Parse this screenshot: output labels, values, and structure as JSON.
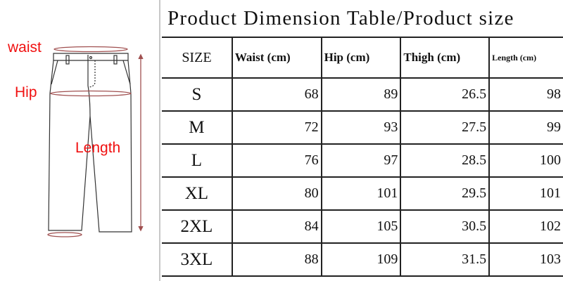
{
  "diagram": {
    "labels": {
      "waist": "waist",
      "hip": "Hip",
      "length": "Length"
    },
    "label_color": "#f01010",
    "measure_color": "#a05050"
  },
  "table": {
    "title": "Product Dimension Table/Product size",
    "headers": [
      "SIZE",
      "Waist (cm)",
      "Hip (cm)",
      "Thigh (cm)",
      "Length (cm)"
    ],
    "rows": [
      [
        "S",
        "68",
        "89",
        "26.5",
        "98"
      ],
      [
        "M",
        "72",
        "93",
        "27.5",
        "99"
      ],
      [
        "L",
        "76",
        "97",
        "28.5",
        "100"
      ],
      [
        "XL",
        "80",
        "101",
        "29.5",
        "101"
      ],
      [
        "2XL",
        "84",
        "105",
        "30.5",
        "102"
      ],
      [
        "3XL",
        "88",
        "109",
        "31.5",
        "103"
      ]
    ]
  }
}
